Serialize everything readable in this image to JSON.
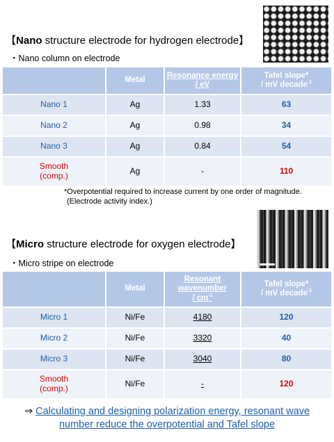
{
  "nano": {
    "title_bold": "Nano",
    "title_open": "【",
    "title_rest": " structure electrode for hydrogen electrode】",
    "bullet": "・Nano column on electrode",
    "headers": {
      "blank": "",
      "metal": "Metal",
      "prop": "Resonance energy / eV",
      "tafel": "Tafel slope*",
      "tafel_unit": "/ mV decade",
      "tafel_exp": "-1"
    },
    "rows": [
      {
        "name": "Nano 1",
        "metal": "Ag",
        "prop": "1.33",
        "tafel": "63"
      },
      {
        "name": "Nano 2",
        "metal": "Ag",
        "prop": "0.98",
        "tafel": "34"
      },
      {
        "name": "Nano 3",
        "metal": "Ag",
        "prop": "0.84",
        "tafel": "54"
      },
      {
        "name_line1": "Smooth",
        "name_line2": "(comp.)",
        "metal": "Ag",
        "prop": "-",
        "tafel": "110"
      }
    ],
    "note_line1": "*Overpotential required to increase current by one order of magnitude.",
    "note_line2": "(Electrode activity index.)"
  },
  "micro": {
    "title_bold": "Micro",
    "title_open": "【",
    "title_rest": " structure electrode for oxygen electrode】",
    "bullet": "・Micro stripe on electrode",
    "headers": {
      "blank": "",
      "metal": "Metal",
      "prop_line1": "Resonant",
      "prop_line2": "wavenumber",
      "prop_unit": "/ cm",
      "prop_exp": "-1",
      "tafel": "Tafel slope*",
      "tafel_unit": "/ mV decade",
      "tafel_exp": "-1"
    },
    "rows": [
      {
        "name": "Micro 1",
        "metal": "Ni/Fe",
        "prop": "4180",
        "tafel": "120"
      },
      {
        "name": "Micro 2",
        "metal": "Ni/Fe",
        "prop": "3320",
        "tafel": "40"
      },
      {
        "name": "Micro 3",
        "metal": "Ni/Fe",
        "prop": "3040",
        "tafel": "80"
      },
      {
        "name_line1": "Smooth",
        "name_line2": "(comp.)",
        "metal": "Ni/Fe",
        "prop": "-",
        "tafel": "120"
      }
    ]
  },
  "conclusion": {
    "arrow": "⇒ ",
    "text": "Calculating and designing polarization energy, resonant wave number reduce the overpotential and Tafel slope"
  },
  "colors": {
    "header_bg": "#b4c7e7",
    "row_bg": "#dde5f2",
    "name_blue": "#1f5fa8",
    "name_red": "#e00000"
  }
}
